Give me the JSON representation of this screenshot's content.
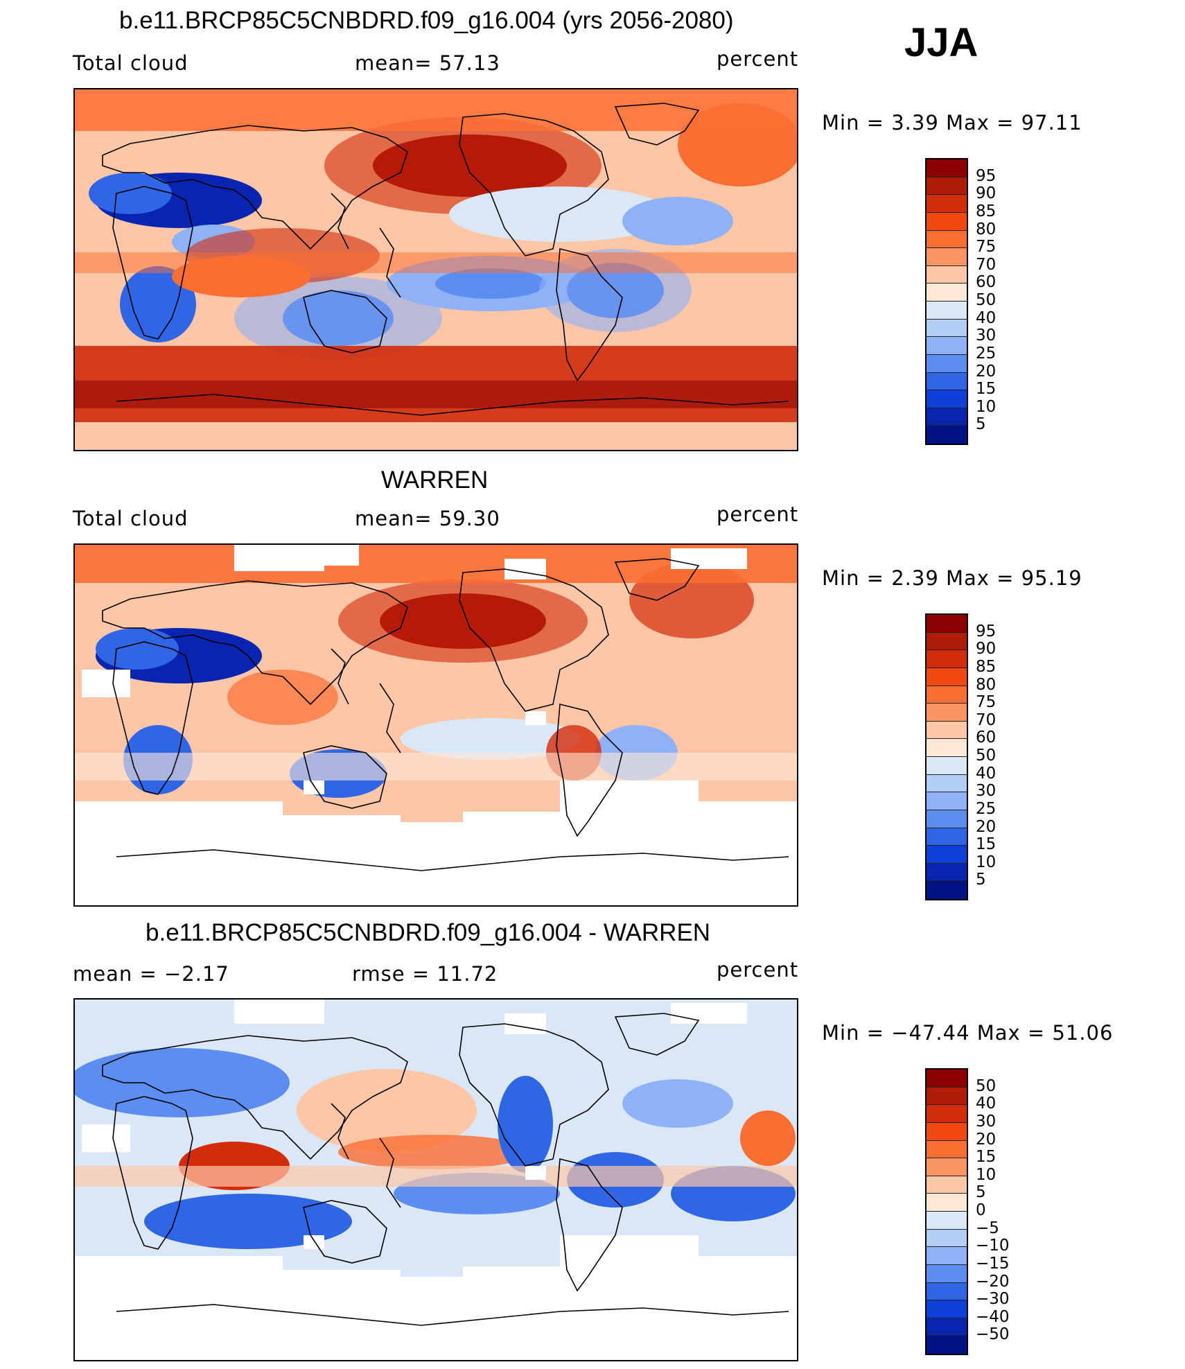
{
  "season": "JJA",
  "panels": [
    {
      "title": "b.e11.BRCP85C5CNBDRD.f09_g16.004 (yrs 2056-2080)",
      "left_label": "Total cloud",
      "center_label": "mean=   57.13",
      "right_label": "percent",
      "minmax": "Min =     3.39  Max =    97.11",
      "colorbar_labels": [
        "95",
        "90",
        "85",
        "80",
        "75",
        "70",
        "60",
        "50",
        "40",
        "30",
        "25",
        "20",
        "15",
        "10",
        "5"
      ]
    },
    {
      "title": "WARREN",
      "left_label": "Total cloud",
      "center_label": "mean=   59.30",
      "right_label": "percent",
      "minmax": "Min =     2.39  Max =    95.19",
      "colorbar_labels": [
        "95",
        "90",
        "85",
        "80",
        "75",
        "70",
        "60",
        "50",
        "40",
        "30",
        "25",
        "20",
        "15",
        "10",
        "5"
      ]
    },
    {
      "title": "b.e11.BRCP85C5CNBDRD.f09_g16.004 - WARREN",
      "left_label": "mean  =    −2.17",
      "center_label": "rmse  =    11.72",
      "right_label": "percent",
      "minmax": "Min  = −47.44  Max  =    51.06",
      "colorbar_labels": [
        "50",
        "40",
        "30",
        "20",
        "15",
        "10",
        "5",
        "0",
        "−5",
        "−10",
        "−15",
        "−20",
        "−30",
        "−40",
        "−50"
      ]
    }
  ],
  "colorbar_colors": [
    "#8b0000",
    "#b01b05",
    "#d22c0a",
    "#f0480f",
    "#fb6e32",
    "#fc9563",
    "#fdc7a7",
    "#fde8d6",
    "#d9e7f7",
    "#b3cef4",
    "#8fb1f5",
    "#5c8df0",
    "#2e66e6",
    "#0d3fd9",
    "#0925b0",
    "#041288"
  ],
  "map_colors": {
    "deep_red": "#8b0000",
    "red": "#d22c0a",
    "orange": "#fb6e32",
    "salmon": "#fc9563",
    "peach": "#fdc7a7",
    "cream": "#fde8d6",
    "light_blue": "#d9e7f7",
    "blue": "#8fb1f5",
    "mid_blue": "#5c8df0",
    "strong_blue": "#2e66e6",
    "dark_blue": "#0925b0"
  }
}
